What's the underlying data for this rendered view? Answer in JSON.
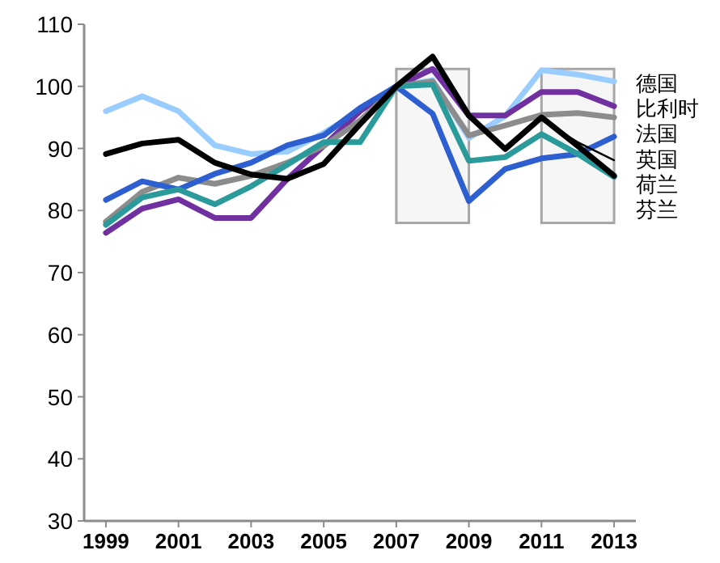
{
  "chart_data": {
    "type": "line",
    "x": [
      1999,
      2000,
      2001,
      2002,
      2003,
      2004,
      2005,
      2006,
      2007,
      2008,
      2009,
      2010,
      2011,
      2012,
      2013
    ],
    "xlim": [
      1998.4,
      2013.6
    ],
    "xticks": [
      1999,
      2001,
      2003,
      2005,
      2007,
      2009,
      2011,
      2013
    ],
    "ylim": [
      30,
      110
    ],
    "yticks": [
      30,
      40,
      50,
      60,
      70,
      80,
      90,
      100,
      110
    ],
    "grid": false,
    "legend": "right",
    "marker": "none",
    "line_style": "solid",
    "bands": [
      {
        "axis": "x",
        "from": 2007,
        "to": 2009,
        "color": "#a6a6a6"
      },
      {
        "axis": "x",
        "from": 2011,
        "to": 2013,
        "color": "#a6a6a6"
      }
    ],
    "series": [
      {
        "name": "德国",
        "color": "#99ccff",
        "values": [
          96.0,
          98.4,
          96.0,
          90.5,
          89.1,
          89.5,
          92.5,
          96.0,
          100,
          101.0,
          91.7,
          95.2,
          102.6,
          101.9,
          100.8
        ]
      },
      {
        "name": "比利时",
        "color": "#7030a0",
        "values": [
          76.4,
          80.3,
          81.8,
          78.8,
          78.8,
          85.1,
          90.4,
          96.0,
          100,
          102.8,
          95.3,
          95.3,
          99.1,
          99.1,
          96.8
        ]
      },
      {
        "name": "法国",
        "color": "#8c8c8c",
        "values": [
          78.2,
          83.0,
          85.3,
          84.3,
          85.6,
          87.7,
          90.4,
          94.5,
          100,
          100.8,
          92.1,
          93.7,
          95.4,
          95.7,
          95.0
        ]
      },
      {
        "name": "英国",
        "color": "#2e5fd0",
        "values": [
          81.7,
          84.7,
          83.4,
          85.9,
          87.7,
          90.5,
          92.1,
          96.5,
          100,
          95.6,
          81.5,
          86.7,
          88.4,
          89.1,
          91.9
        ]
      },
      {
        "name": "荷兰",
        "color": "#2a9a9a",
        "values": [
          77.7,
          82.1,
          83.4,
          81.0,
          83.9,
          87.4,
          91.0,
          91.0,
          100,
          100.3,
          88.0,
          88.6,
          92.3,
          89.1,
          85.4
        ]
      },
      {
        "name": "芬兰",
        "color": "#000000",
        "values": [
          89.1,
          90.8,
          91.4,
          87.7,
          85.8,
          85.1,
          87.5,
          93.9,
          100,
          104.8,
          95.3,
          89.9,
          95.0,
          90.4,
          85.6
        ]
      },
      {
        "color": "#000000",
        "x": [
          2011,
          2012,
          2013
        ],
        "values": [
          94.6,
          91.0,
          88.1
        ]
      }
    ]
  }
}
